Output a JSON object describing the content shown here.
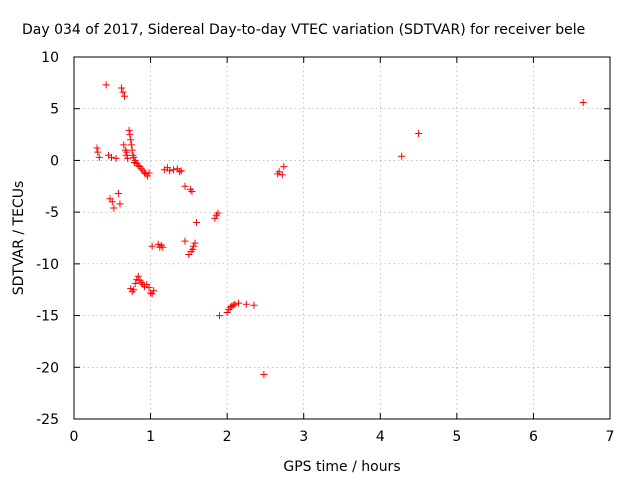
{
  "chart_data": {
    "type": "scatter",
    "title": "Day 034 of 2017, Sidereal Day-to-day VTEC variation (SDTVAR) for receiver bele",
    "xlabel": "GPS time / hours",
    "ylabel": "SDTVAR / TECUs",
    "xlim": [
      0,
      7
    ],
    "ylim": [
      -25,
      10
    ],
    "xticks": [
      0,
      1,
      2,
      3,
      4,
      5,
      6,
      7
    ],
    "yticks": [
      -25,
      -20,
      -15,
      -10,
      -5,
      0,
      5,
      10
    ],
    "xtick_labels": [
      "0",
      "1",
      "2",
      "3",
      "4",
      "5",
      "6",
      "7"
    ],
    "ytick_labels": [
      "-25",
      "-20",
      "-15",
      "-10",
      "-5",
      "0",
      "5",
      "10"
    ],
    "grid": true,
    "marker": "+",
    "color": "#ff0000",
    "series": [
      {
        "name": "SDTVAR",
        "x": [
          0.3,
          0.31,
          0.33,
          0.42,
          0.45,
          0.47,
          0.49,
          0.5,
          0.52,
          0.55,
          0.58,
          0.6,
          0.62,
          0.64,
          0.65,
          0.66,
          0.67,
          0.68,
          0.69,
          0.7,
          0.72,
          0.73,
          0.74,
          0.75,
          0.76,
          0.77,
          0.78,
          0.79,
          0.8,
          0.82,
          0.84,
          0.86,
          0.88,
          0.9,
          0.92,
          0.94,
          0.96,
          0.98,
          1.0,
          1.02,
          1.04,
          0.74,
          0.76,
          0.78,
          0.8,
          0.82,
          0.84,
          0.86,
          0.88,
          0.9,
          0.92,
          0.95,
          0.98,
          1.02,
          1.1,
          1.12,
          1.14,
          1.16,
          1.18,
          1.22,
          1.25,
          1.3,
          1.35,
          1.38,
          1.4,
          1.45,
          1.45,
          1.5,
          1.52,
          1.53,
          1.54,
          1.55,
          1.56,
          1.58,
          1.6,
          1.84,
          1.86,
          1.88,
          1.9,
          2.0,
          2.02,
          2.04,
          2.06,
          2.08,
          2.1,
          2.15,
          2.25,
          2.35,
          2.48,
          2.66,
          2.68,
          2.72,
          2.74,
          4.28,
          4.5,
          6.65
        ],
        "y": [
          1.2,
          0.8,
          0.3,
          7.3,
          0.5,
          -3.7,
          0.3,
          -4.0,
          -4.6,
          0.2,
          -3.2,
          -4.2,
          7.0,
          6.6,
          1.5,
          6.2,
          1.0,
          0.5,
          0.8,
          0.2,
          2.9,
          2.5,
          2.0,
          1.5,
          1.0,
          0.5,
          0.3,
          -0.2,
          0.0,
          -0.3,
          -0.5,
          -0.6,
          -0.8,
          -1.0,
          -1.2,
          -1.3,
          -1.5,
          -1.2,
          -12.8,
          -12.9,
          -12.6,
          -12.4,
          -12.7,
          -12.5,
          -11.9,
          -11.5,
          -11.2,
          -11.6,
          -11.8,
          -12.0,
          -12.2,
          -12.0,
          -12.3,
          -8.3,
          -8.1,
          -8.4,
          -8.2,
          -8.4,
          -0.9,
          -0.7,
          -1.0,
          -0.9,
          -0.8,
          -1.1,
          -1.0,
          -7.8,
          -2.5,
          -9.1,
          -2.8,
          -8.8,
          -3.0,
          -8.6,
          -8.3,
          -8.0,
          -6.0,
          -5.6,
          -5.3,
          -5.1,
          -15.0,
          -14.7,
          -14.4,
          -14.2,
          -14.1,
          -14.0,
          -13.9,
          -13.8,
          -13.9,
          -14.0,
          -20.7,
          -1.3,
          -1.1,
          -1.4,
          -0.6,
          0.4,
          2.6,
          5.6
        ]
      }
    ]
  }
}
